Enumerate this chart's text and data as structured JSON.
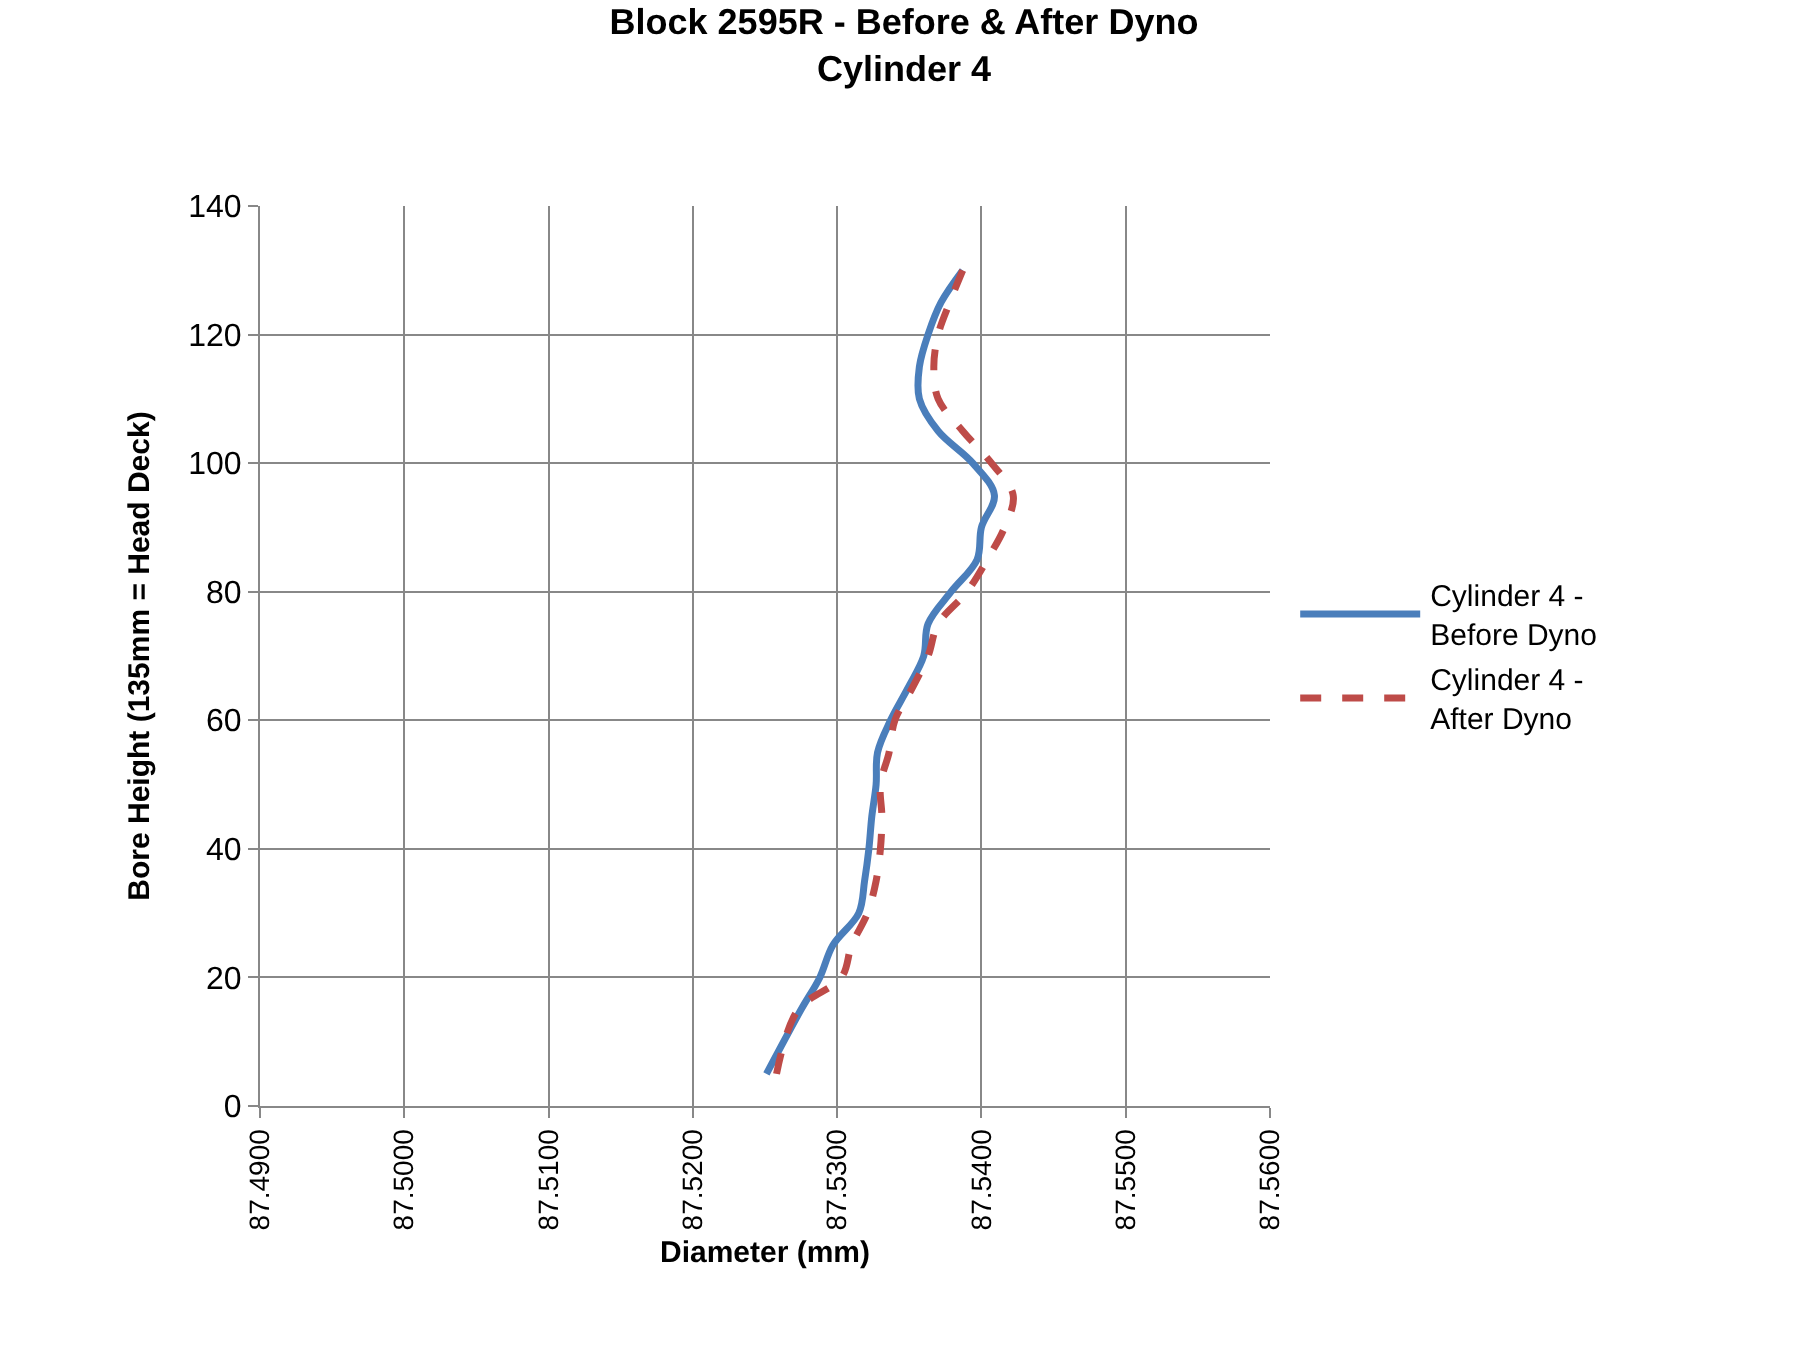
{
  "chart_data": {
    "type": "line",
    "title": "Block 2595R - Before & After Dyno",
    "subtitle": "Cylinder 4",
    "xlabel": "Diameter (mm)",
    "ylabel": "Bore Height (135mm = Head Deck)",
    "xlim": [
      87.49,
      87.56
    ],
    "xticks": [
      {
        "value": 87.49,
        "label": "87.4900"
      },
      {
        "value": 87.5,
        "label": "87.5000"
      },
      {
        "value": 87.51,
        "label": "87.5100"
      },
      {
        "value": 87.52,
        "label": "87.5200"
      },
      {
        "value": 87.53,
        "label": "87.5300"
      },
      {
        "value": 87.54,
        "label": "87.5400"
      },
      {
        "value": 87.55,
        "label": "87.5500"
      },
      {
        "value": 87.56,
        "label": "87.5600"
      }
    ],
    "ylim": [
      0,
      140
    ],
    "yticks": [
      0,
      20,
      40,
      60,
      80,
      100,
      120,
      140
    ],
    "grid": true,
    "legend": "right",
    "marker": "none",
    "series": [
      {
        "name": "Cylinder 4 - Before Dyno",
        "color": "#4a7ebb",
        "line_style": "solid",
        "x": [
          87.5251,
          87.5275,
          87.5288,
          87.5297,
          87.5315,
          87.5319,
          87.5322,
          87.5324,
          87.5327,
          87.5328,
          87.5337,
          87.5349,
          87.536,
          87.5363,
          87.5379,
          87.5397,
          87.54,
          87.5409,
          87.5394,
          87.537,
          87.5357,
          87.5357,
          87.5363,
          87.5372,
          87.5387
        ],
        "values": [
          5,
          15,
          20,
          25,
          30,
          35,
          40,
          45,
          50,
          55,
          60,
          65,
          70,
          75,
          80,
          85,
          90,
          95,
          100,
          105,
          110,
          115,
          120,
          125,
          130
        ]
      },
      {
        "name": "Cylinder 4 - After Dyno",
        "color": "#be4b48",
        "line_style": "dashed",
        "x": [
          87.5258,
          87.5273,
          87.5303,
          87.531,
          87.5321,
          87.5327,
          87.533,
          87.5331,
          87.533,
          87.5336,
          87.534,
          87.5352,
          87.5363,
          87.537,
          87.539,
          87.5404,
          87.5416,
          87.5422,
          87.5407,
          87.5387,
          87.537,
          87.5367,
          87.537,
          87.5378,
          87.5387
        ],
        "values": [
          5,
          15,
          20,
          25,
          30,
          35,
          40,
          45,
          50,
          55,
          60,
          65,
          70,
          75,
          80,
          85,
          90,
          95,
          100,
          105,
          110,
          115,
          120,
          125,
          130
        ]
      }
    ]
  }
}
